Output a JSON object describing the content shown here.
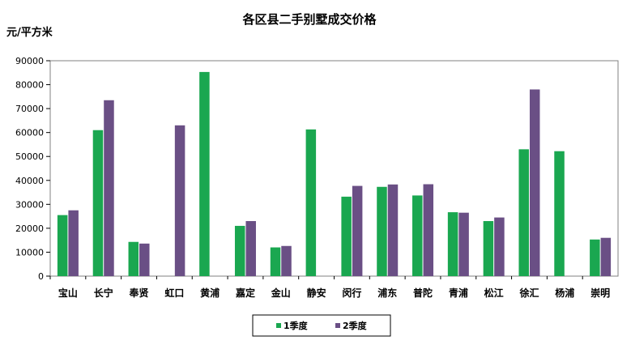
{
  "chart_data": {
    "type": "bar",
    "title": "各区县二手别墅成交价格",
    "ylabel": "元/平方米",
    "xlabel": "",
    "ylim": [
      0,
      90000
    ],
    "yticks": [
      0,
      10000,
      20000,
      30000,
      40000,
      50000,
      60000,
      70000,
      80000,
      90000
    ],
    "categories": [
      "宝山",
      "长宁",
      "奉贤",
      "虹口",
      "黄浦",
      "嘉定",
      "金山",
      "静安",
      "闵行",
      "浦东",
      "普陀",
      "青浦",
      "松江",
      "徐汇",
      "杨浦",
      "崇明"
    ],
    "series": [
      {
        "name": "1季度",
        "color": "#1aa750",
        "values": [
          25500,
          61000,
          14300,
          null,
          85300,
          21000,
          12000,
          61300,
          33200,
          37300,
          33700,
          26700,
          23000,
          53000,
          52200,
          15300
        ]
      },
      {
        "name": "2季度",
        "color": "#6a4f85",
        "values": [
          27500,
          73500,
          13600,
          63000,
          null,
          23000,
          12600,
          null,
          37700,
          38300,
          38400,
          26500,
          24500,
          78000,
          null,
          16000
        ]
      }
    ],
    "grid": false,
    "legend_position": "bottom-center"
  }
}
